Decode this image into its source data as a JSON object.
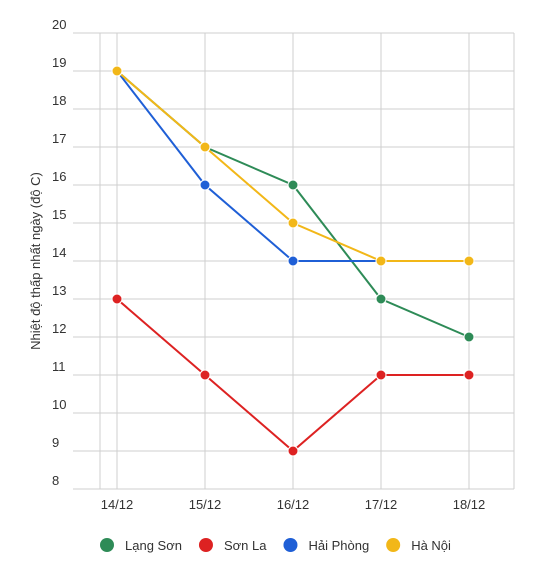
{
  "chart_data": {
    "type": "line",
    "categories": [
      "14/12",
      "15/12",
      "16/12",
      "17/12",
      "18/12"
    ],
    "series": [
      {
        "name": "Lạng Sơn",
        "color": "#2e8b57",
        "values": [
          19,
          17,
          16,
          13,
          12
        ]
      },
      {
        "name": "Sơn La",
        "color": "#dd2222",
        "values": [
          13,
          11,
          9,
          11,
          11
        ]
      },
      {
        "name": "Hải Phòng",
        "color": "#1f5fd6",
        "values": [
          19,
          16,
          14,
          14,
          null
        ]
      },
      {
        "name": "Hà Nội",
        "color": "#f2b718",
        "values": [
          19,
          17,
          15,
          14,
          14
        ]
      }
    ],
    "ylabel": "Nhiệt độ thấp nhất ngày (độ C)",
    "xlabel": "",
    "ylim": [
      8,
      20
    ],
    "yticks": [
      8,
      9,
      10,
      11,
      12,
      13,
      14,
      15,
      16,
      17,
      18,
      19,
      20
    ],
    "grid": true,
    "legend": "bottom"
  }
}
